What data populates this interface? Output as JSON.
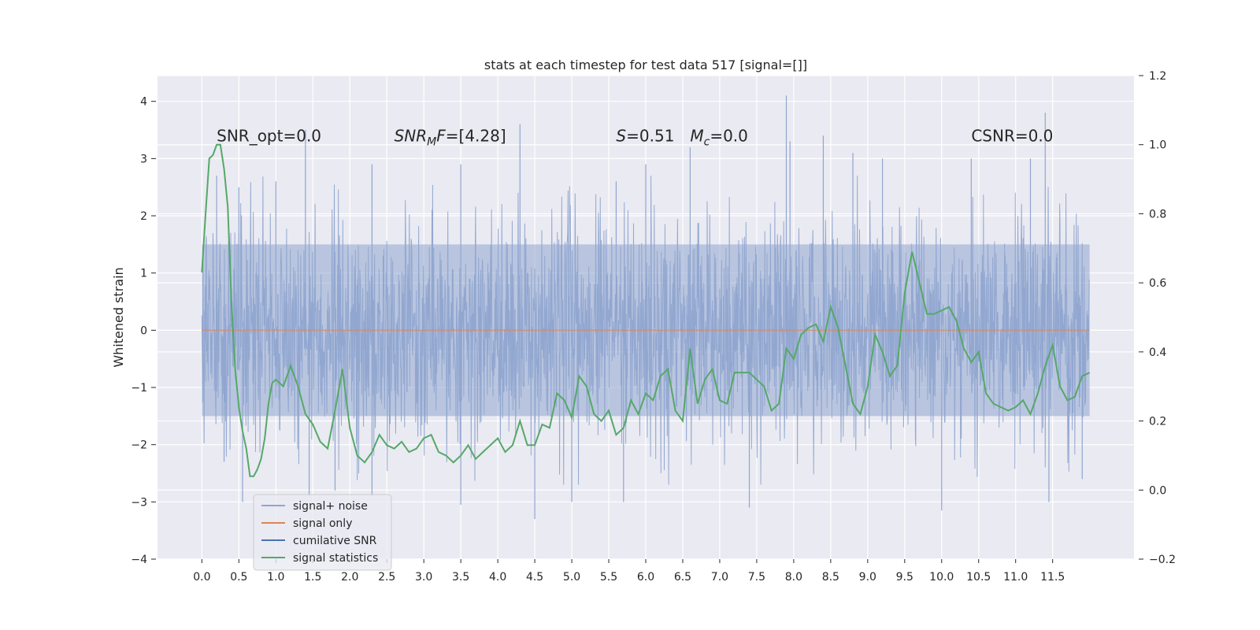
{
  "chart_data": {
    "type": "line",
    "title": "stats at each timestep for test data 517 [signal=[]]",
    "xlabel": "",
    "ylabel": "Whitened strain",
    "xlim": [
      -0.6,
      12.6
    ],
    "ylim": [
      -4.0,
      4.45
    ],
    "y2lim": [
      -0.2,
      1.2
    ],
    "grid": true,
    "x_ticks": [
      0.0,
      0.5,
      1.0,
      1.5,
      2.0,
      2.5,
      3.0,
      3.5,
      4.0,
      4.5,
      5.0,
      5.5,
      6.0,
      6.5,
      7.0,
      7.5,
      8.0,
      8.5,
      9.0,
      9.5,
      10.0,
      10.5,
      11.0,
      11.5
    ],
    "x_tick_labels": [
      "0.0",
      "0.5",
      "1.0",
      "1.5",
      "2.0",
      "2.5",
      "3.0",
      "3.5",
      "4.0",
      "4.5",
      "5.0",
      "5.5",
      "6.0",
      "6.5",
      "7.0",
      "7.5",
      "8.0",
      "8.5",
      "9.0",
      "9.5",
      "10.0",
      "10.5",
      "11.0",
      "11.5"
    ],
    "y_ticks": [
      -4,
      -3,
      -2,
      -1,
      0,
      1,
      2,
      3,
      4
    ],
    "y_tick_labels": [
      "−4",
      "−3",
      "−2",
      "−1",
      "0",
      "1",
      "2",
      "3",
      "4"
    ],
    "y2_ticks": [
      -0.2,
      0.0,
      0.2,
      0.4,
      0.6,
      0.8,
      1.0,
      1.2
    ],
    "y2_tick_labels": [
      "−0.2",
      "0.0",
      "0.2",
      "0.4",
      "0.6",
      "0.8",
      "1.0",
      "1.2"
    ],
    "annotations": [
      {
        "text": "SNR_opt=0.0",
        "x": 0.2,
        "y": 3.3
      },
      {
        "text": "SNR_MF=[4.28]",
        "x": 2.6,
        "y": 3.3
      },
      {
        "text": "S=0.51",
        "x": 5.6,
        "y": 3.3
      },
      {
        "text": "M_c=0.0",
        "x": 6.6,
        "y": 3.3
      },
      {
        "text": "CSNR=0.0",
        "x": 10.4,
        "y": 3.3
      }
    ],
    "legend_placement": "lower left",
    "legend": [
      {
        "label": "signal+ noise",
        "color": "#8fa5cf"
      },
      {
        "label": "signal only",
        "color": "#dd8452"
      },
      {
        "label": "cumilative SNR",
        "color": "#4c72b0"
      },
      {
        "label": "signal statistics",
        "color": "#55a868"
      }
    ],
    "series": [
      {
        "name": "signal+ noise",
        "axis": "left",
        "color": "#8fa5cf",
        "x_range": [
          0.0,
          12.0
        ],
        "approx_envelope": [
          -1.9,
          1.9
        ],
        "spikes": [
          [
            0.2,
            2.7
          ],
          [
            0.3,
            -2.3
          ],
          [
            0.5,
            2.5
          ],
          [
            0.55,
            -3.0
          ],
          [
            1.0,
            2.6
          ],
          [
            1.4,
            3.5
          ],
          [
            1.45,
            -2.9
          ],
          [
            1.8,
            -2.8
          ],
          [
            2.3,
            2.9
          ],
          [
            2.3,
            -2.9
          ],
          [
            3.5,
            2.9
          ],
          [
            3.5,
            -3.05
          ],
          [
            4.3,
            3.6
          ],
          [
            4.5,
            -3.3
          ],
          [
            5.0,
            -3.0
          ],
          [
            5.6,
            2.6
          ],
          [
            5.7,
            -3.0
          ],
          [
            6.0,
            2.9
          ],
          [
            6.6,
            3.2
          ],
          [
            7.4,
            -3.1
          ],
          [
            7.9,
            4.1
          ],
          [
            7.95,
            3.3
          ],
          [
            8.4,
            3.4
          ],
          [
            8.8,
            3.1
          ],
          [
            9.2,
            3.0
          ],
          [
            10.0,
            -3.15
          ],
          [
            10.4,
            3.0
          ],
          [
            11.2,
            3.0
          ],
          [
            11.4,
            3.8
          ],
          [
            11.45,
            -3.0
          ],
          [
            11.9,
            -2.6
          ]
        ]
      },
      {
        "name": "signal only",
        "axis": "left",
        "color": "#dd8452",
        "x": [
          0.0,
          12.0
        ],
        "y": [
          0.0,
          0.0
        ]
      },
      {
        "name": "signal statistics",
        "axis": "right",
        "color": "#55a868",
        "x": [
          0.0,
          0.05,
          0.1,
          0.15,
          0.2,
          0.25,
          0.3,
          0.35,
          0.4,
          0.45,
          0.5,
          0.55,
          0.6,
          0.65,
          0.7,
          0.75,
          0.8,
          0.85,
          0.9,
          0.95,
          1.0,
          1.1,
          1.2,
          1.3,
          1.4,
          1.5,
          1.6,
          1.7,
          1.8,
          1.9,
          2.0,
          2.1,
          2.2,
          2.3,
          2.4,
          2.5,
          2.6,
          2.7,
          2.8,
          2.9,
          3.0,
          3.1,
          3.2,
          3.3,
          3.4,
          3.5,
          3.6,
          3.7,
          3.8,
          3.9,
          4.0,
          4.1,
          4.2,
          4.3,
          4.4,
          4.5,
          4.6,
          4.7,
          4.8,
          4.9,
          5.0,
          5.1,
          5.2,
          5.3,
          5.4,
          5.5,
          5.6,
          5.7,
          5.8,
          5.9,
          6.0,
          6.1,
          6.2,
          6.3,
          6.4,
          6.5,
          6.6,
          6.7,
          6.8,
          6.9,
          7.0,
          7.1,
          7.2,
          7.3,
          7.4,
          7.5,
          7.6,
          7.7,
          7.8,
          7.9,
          8.0,
          8.1,
          8.2,
          8.3,
          8.4,
          8.5,
          8.6,
          8.7,
          8.8,
          8.9,
          9.0,
          9.1,
          9.2,
          9.3,
          9.4,
          9.5,
          9.6,
          9.7,
          9.8,
          9.9,
          10.0,
          10.1,
          10.2,
          10.3,
          10.4,
          10.5,
          10.6,
          10.7,
          10.8,
          10.9,
          11.0,
          11.1,
          11.2,
          11.3,
          11.4,
          11.5,
          11.6,
          11.7,
          11.8,
          11.9,
          12.0
        ],
        "y": [
          0.63,
          0.8,
          0.96,
          0.97,
          1.0,
          1.0,
          0.93,
          0.82,
          0.54,
          0.35,
          0.24,
          0.17,
          0.12,
          0.04,
          0.04,
          0.06,
          0.09,
          0.15,
          0.25,
          0.31,
          0.32,
          0.3,
          0.36,
          0.3,
          0.22,
          0.19,
          0.14,
          0.12,
          0.23,
          0.35,
          0.18,
          0.1,
          0.08,
          0.11,
          0.16,
          0.13,
          0.12,
          0.14,
          0.11,
          0.12,
          0.15,
          0.16,
          0.11,
          0.1,
          0.08,
          0.1,
          0.13,
          0.09,
          0.11,
          0.13,
          0.15,
          0.11,
          0.13,
          0.2,
          0.13,
          0.13,
          0.19,
          0.18,
          0.28,
          0.26,
          0.21,
          0.33,
          0.3,
          0.22,
          0.2,
          0.23,
          0.16,
          0.18,
          0.26,
          0.22,
          0.28,
          0.26,
          0.33,
          0.35,
          0.23,
          0.2,
          0.41,
          0.25,
          0.32,
          0.35,
          0.26,
          0.25,
          0.34,
          0.34,
          0.34,
          0.32,
          0.3,
          0.23,
          0.25,
          0.41,
          0.38,
          0.45,
          0.47,
          0.48,
          0.43,
          0.53,
          0.47,
          0.36,
          0.25,
          0.22,
          0.3,
          0.45,
          0.4,
          0.33,
          0.36,
          0.57,
          0.69,
          0.6,
          0.51,
          0.51,
          0.52,
          0.53,
          0.49,
          0.41,
          0.37,
          0.4,
          0.28,
          0.25,
          0.24,
          0.23,
          0.24,
          0.26,
          0.22,
          0.28,
          0.36,
          0.42,
          0.3,
          0.26,
          0.27,
          0.33,
          0.34
        ]
      }
    ]
  }
}
